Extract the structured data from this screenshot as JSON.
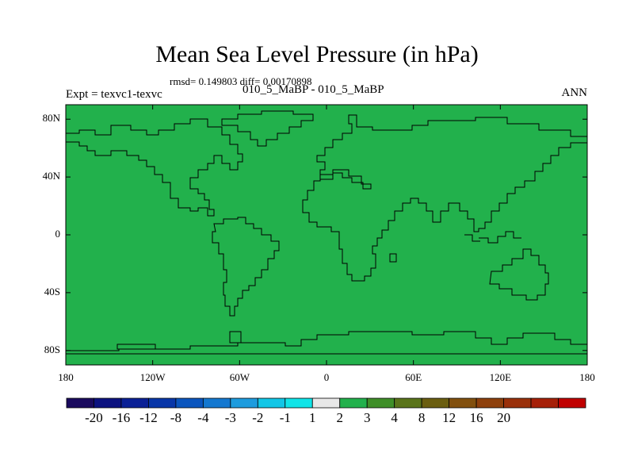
{
  "title": "Mean Sea Level Pressure (in hPa)",
  "stats": "rmsd= 0.149803 diff= 0.00170898",
  "left_string": "Expt = texvc1-texvc",
  "center_string": "010_5_MaBP - 010_5_MaBP",
  "right_string": "ANN",
  "map": {
    "lat_labels": [
      "80N",
      "40N",
      "0",
      "40S",
      "80S"
    ],
    "lat_values": [
      80,
      40,
      0,
      -40,
      -80
    ],
    "lon_labels": [
      "180",
      "120W",
      "60W",
      "0",
      "60E",
      "120E",
      "180"
    ],
    "lon_values": [
      -180,
      -120,
      -60,
      0,
      60,
      120,
      180
    ],
    "fill_value_range": "1 to 2",
    "fill_color": "#22B14C",
    "coast_color": "#000000"
  },
  "colorbar": {
    "colors": [
      "#1A0A5E",
      "#0C1280",
      "#0A2096",
      "#0836A8",
      "#0A55BE",
      "#1478D0",
      "#1E9CDE",
      "#12C6E6",
      "#11E4E8",
      "#E8E8E8",
      "#22B14C",
      "#3F8F28",
      "#5A741A",
      "#6B5E10",
      "#82500E",
      "#8E400C",
      "#9A300A",
      "#A62008",
      "#C00000"
    ],
    "labels": [
      "-20",
      "-16",
      "-12",
      "-8",
      "-4",
      "-3",
      "-2",
      "-1",
      "1",
      "2",
      "3",
      "4",
      "8",
      "12",
      "16",
      "20"
    ]
  }
}
